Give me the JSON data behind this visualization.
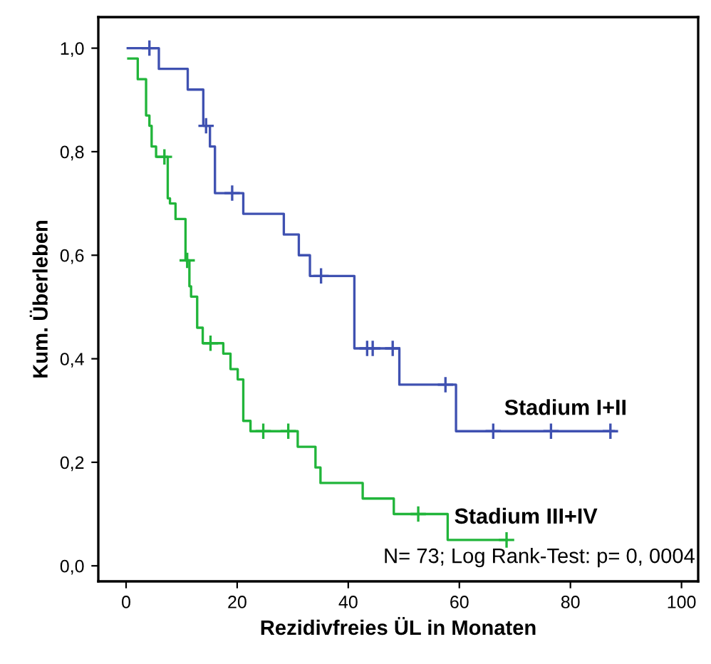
{
  "chart_data": {
    "type": "step",
    "xlabel": "Rezidivfreies ÜL in Monaten",
    "ylabel": "Kum. Überleben",
    "xlim": [
      -5,
      103
    ],
    "ylim": [
      -0.03,
      1.06
    ],
    "xticks": [
      0,
      20,
      40,
      60,
      80,
      100
    ],
    "yticks": [
      {
        "value": 0,
        "label": "0,0"
      },
      {
        "value": 0.2,
        "label": "0,2"
      },
      {
        "value": 0.4,
        "label": "0,4"
      },
      {
        "value": 0.6,
        "label": "0,6"
      },
      {
        "value": 0.8,
        "label": "0,8"
      },
      {
        "value": 1.0,
        "label": "1,0"
      }
    ],
    "grid": false,
    "legend": false,
    "series": [
      {
        "color": "#3f51b1",
        "x": [
          0.3,
          5.9,
          11.1,
          13.9,
          15.1,
          16.0,
          21.1,
          28.4,
          31.1,
          33.1,
          41.1,
          49.2,
          59.4,
          87.8
        ],
        "values": [
          1.0,
          0.96,
          0.92,
          0.85,
          0.81,
          0.72,
          0.68,
          0.64,
          0.6,
          0.56,
          0.42,
          0.35,
          0.26,
          0.26
        ]
      },
      {
        "type": "scatter",
        "marker": "cross",
        "color": "#3f51b1",
        "x": [
          4.2,
          14.4,
          19.1,
          35.1,
          43.4,
          44.4,
          48.0,
          57.5,
          66.1,
          76.5,
          87.2
        ],
        "values": [
          1.0,
          0.85,
          0.72,
          0.56,
          0.42,
          0.42,
          0.42,
          0.35,
          0.26,
          0.26,
          0.26
        ]
      },
      {
        "color": "#21b53a",
        "x": [
          0.4,
          2.1,
          3.6,
          4.2,
          4.6,
          5.4,
          7.5,
          7.9,
          8.9,
          10.7,
          11.4,
          11.7,
          12.8,
          13.8,
          17.5,
          18.8,
          20.1,
          21.1,
          22.4,
          30.9,
          34.1,
          35.0,
          42.6,
          48.2,
          57.9,
          68.5
        ],
        "values": [
          0.98,
          0.94,
          0.87,
          0.85,
          0.81,
          0.79,
          0.71,
          0.7,
          0.67,
          0.59,
          0.54,
          0.52,
          0.46,
          0.43,
          0.41,
          0.38,
          0.36,
          0.28,
          0.26,
          0.23,
          0.19,
          0.16,
          0.13,
          0.1,
          0.05,
          0.05
        ]
      },
      {
        "type": "scatter",
        "marker": "cross",
        "color": "#21b53a",
        "x": [
          6.9,
          11.0,
          15.2,
          24.7,
          29.2,
          52.6,
          68.5
        ],
        "values": [
          0.79,
          0.59,
          0.43,
          0.26,
          0.26,
          0.1,
          0.05
        ]
      }
    ],
    "annotations": [
      {
        "text": "Stadium I+II",
        "x": 67,
        "y": 0.26
      },
      {
        "text": "Stadium III+IV",
        "x": 58,
        "y": 0.05
      },
      "N= 73; Log Rank-Test: p= 0, 0004"
    ]
  }
}
